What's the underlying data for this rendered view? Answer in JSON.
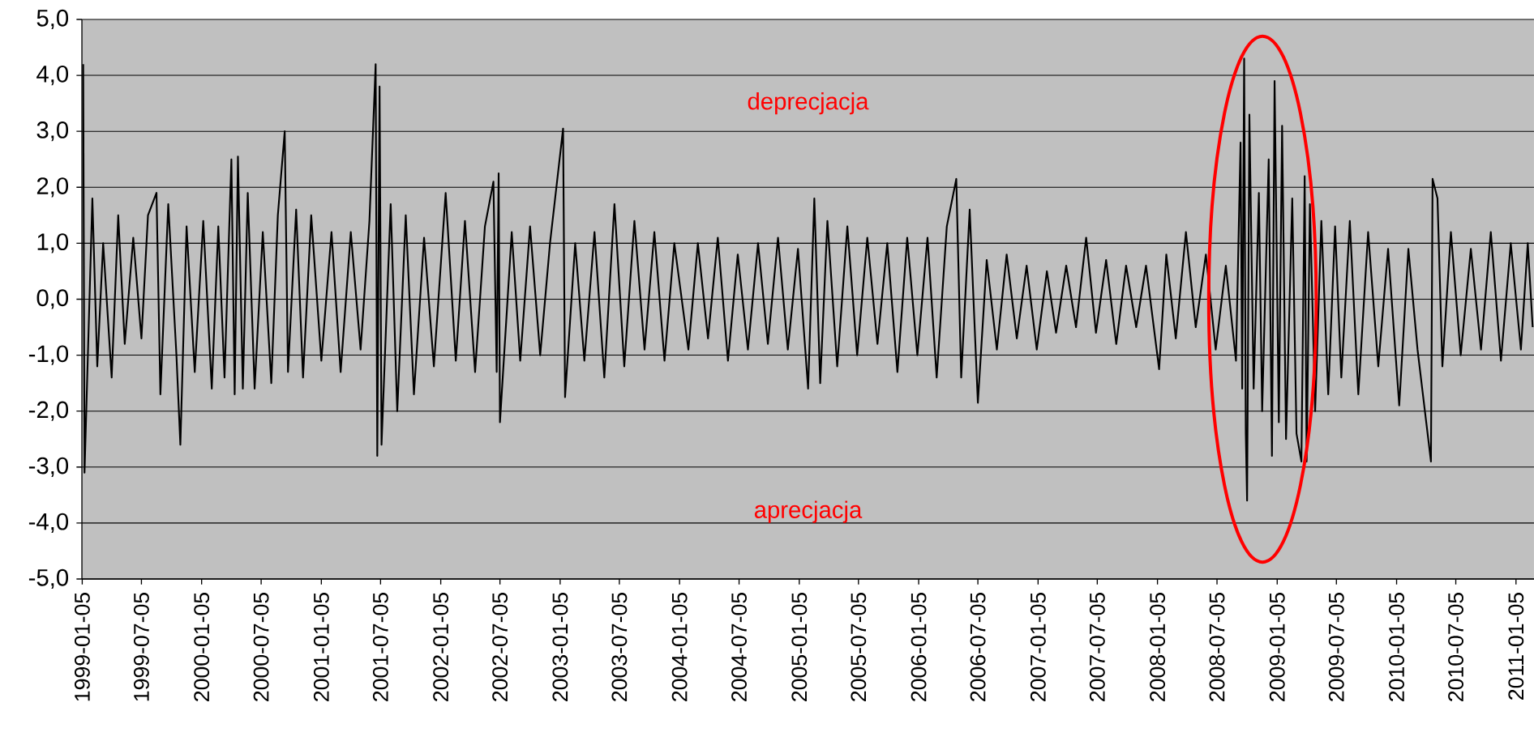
{
  "chart_data": {
    "type": "line",
    "color": "#000000",
    "grid": "y",
    "annotations": [
      "deprecjacja",
      "aprecjacja"
    ],
    "xlim": [
      "1999-01-04",
      "2011-03-01"
    ],
    "xticks": [
      "1999-01-05",
      "1999-07-05",
      "2000-01-05",
      "2000-07-05",
      "2001-01-05",
      "2001-07-05",
      "2002-01-05",
      "2002-07-05",
      "2003-01-05",
      "2003-07-05",
      "2004-01-05",
      "2004-07-05",
      "2005-01-05",
      "2005-07-05",
      "2006-01-05",
      "2006-07-05",
      "2007-01-05",
      "2007-07-05",
      "2008-01-05",
      "2008-07-05",
      "2009-01-05",
      "2009-07-05",
      "2010-01-05",
      "2010-07-05",
      "2011-01-05"
    ],
    "ylim": [
      -5,
      5
    ],
    "yticks": [
      {
        "value": -5,
        "label": "-5,0"
      },
      {
        "value": -4,
        "label": "-4,0"
      },
      {
        "value": -3,
        "label": "-3,0"
      },
      {
        "value": -2,
        "label": "-2,0"
      },
      {
        "value": -1,
        "label": "-1,0"
      },
      {
        "value": 0,
        "label": "0,0"
      },
      {
        "value": 1,
        "label": "1,0"
      },
      {
        "value": 2,
        "label": "2,0"
      },
      {
        "value": 3,
        "label": "3,0"
      },
      {
        "value": 4,
        "label": "4,0"
      },
      {
        "value": 5,
        "label": "5,0"
      }
    ],
    "x": [
      "1999-01-08",
      "1999-01-12",
      "1999-02-05",
      "1999-02-20",
      "1999-03-10",
      "1999-04-05",
      "1999-04-25",
      "1999-05-15",
      "1999-06-10",
      "1999-07-05",
      "1999-07-25",
      "1999-08-20",
      "1999-09-01",
      "1999-09-25",
      "1999-10-20",
      "1999-11-01",
      "1999-11-20",
      "1999-12-15",
      "2000-01-10",
      "2000-02-05",
      "2000-02-25",
      "2000-03-15",
      "2000-04-05",
      "2000-04-15",
      "2000-04-25",
      "2000-05-10",
      "2000-05-25",
      "2000-06-15",
      "2000-07-10",
      "2000-08-05",
      "2000-08-25",
      "2000-09-15",
      "2000-09-25",
      "2000-10-20",
      "2000-11-10",
      "2000-12-05",
      "2001-01-05",
      "2001-02-05",
      "2001-03-05",
      "2001-04-05",
      "2001-05-05",
      "2001-06-01",
      "2001-06-20",
      "2001-06-25",
      "2001-07-02",
      "2001-07-08",
      "2001-08-05",
      "2001-08-25",
      "2001-09-20",
      "2001-10-15",
      "2001-11-15",
      "2001-12-15",
      "2002-01-20",
      "2002-02-20",
      "2002-03-20",
      "2002-04-20",
      "2002-05-20",
      "2002-06-15",
      "2002-06-25",
      "2002-07-01",
      "2002-07-05",
      "2002-08-10",
      "2002-09-05",
      "2002-10-05",
      "2002-11-05",
      "2002-12-05",
      "2003-01-14",
      "2003-01-20",
      "2003-02-20",
      "2003-03-20",
      "2003-04-20",
      "2003-05-20",
      "2003-06-20",
      "2003-07-20",
      "2003-08-20",
      "2003-09-20",
      "2003-10-20",
      "2003-11-20",
      "2003-12-20",
      "2004-02-01",
      "2004-03-01",
      "2004-04-01",
      "2004-05-01",
      "2004-06-01",
      "2004-07-01",
      "2004-08-01",
      "2004-09-01",
      "2004-10-01",
      "2004-11-01",
      "2004-12-01",
      "2005-01-01",
      "2005-02-01",
      "2005-02-20",
      "2005-03-10",
      "2005-04-01",
      "2005-05-01",
      "2005-06-01",
      "2005-07-01",
      "2005-08-01",
      "2005-09-01",
      "2005-10-01",
      "2005-11-01",
      "2005-12-01",
      "2006-01-01",
      "2006-02-01",
      "2006-03-01",
      "2006-04-01",
      "2006-04-30",
      "2006-05-15",
      "2006-06-10",
      "2006-07-05",
      "2006-08-01",
      "2006-09-01",
      "2006-10-01",
      "2006-11-01",
      "2006-12-01",
      "2007-01-01",
      "2007-02-01",
      "2007-03-01",
      "2007-04-01",
      "2007-05-01",
      "2007-06-01",
      "2007-07-01",
      "2007-08-01",
      "2007-09-01",
      "2007-10-01",
      "2007-11-01",
      "2007-12-01",
      "2008-01-10",
      "2008-02-01",
      "2008-03-01",
      "2008-04-01",
      "2008-05-01",
      "2008-06-01",
      "2008-07-01",
      "2008-08-01",
      "2008-09-01",
      "2008-09-15",
      "2008-09-20",
      "2008-09-26",
      "2008-10-01",
      "2008-10-05",
      "2008-10-12",
      "2008-10-25",
      "2008-11-10",
      "2008-11-20",
      "2008-12-10",
      "2008-12-20",
      "2008-12-28",
      "2009-01-10",
      "2009-01-20",
      "2009-02-01",
      "2009-02-20",
      "2009-03-05",
      "2009-03-20",
      "2009-03-30",
      "2009-04-05",
      "2009-04-15",
      "2009-05-01",
      "2009-05-20",
      "2009-06-10",
      "2009-07-01",
      "2009-07-20",
      "2009-08-15",
      "2009-09-10",
      "2009-10-10",
      "2009-11-10",
      "2009-12-10",
      "2010-01-13",
      "2010-02-10",
      "2010-03-10",
      "2010-04-20",
      "2010-04-25",
      "2010-05-10",
      "2010-05-25",
      "2010-06-20",
      "2010-07-20",
      "2010-08-20",
      "2010-09-20",
      "2010-10-20",
      "2010-11-20",
      "2010-12-20",
      "2011-01-20",
      "2011-02-10",
      "2011-02-25"
    ],
    "values": [
      4.2,
      -3.1,
      1.8,
      -1.2,
      1.0,
      -1.4,
      1.5,
      -0.8,
      1.1,
      -0.7,
      1.5,
      1.9,
      -1.7,
      1.7,
      -1.0,
      -2.6,
      1.3,
      -1.3,
      1.4,
      -1.6,
      1.3,
      -1.4,
      2.5,
      -1.7,
      2.55,
      -1.6,
      1.9,
      -1.6,
      1.2,
      -1.5,
      1.5,
      3.0,
      -1.3,
      1.6,
      -1.4,
      1.5,
      -1.1,
      1.2,
      -1.3,
      1.2,
      -0.9,
      1.4,
      4.2,
      -2.8,
      3.8,
      -2.6,
      1.7,
      -2.0,
      1.5,
      -1.7,
      1.1,
      -1.2,
      1.9,
      -1.1,
      1.4,
      -1.3,
      1.3,
      2.1,
      -1.3,
      2.25,
      -2.2,
      1.2,
      -1.1,
      1.3,
      -1.0,
      1.0,
      3.05,
      -1.75,
      1.0,
      -1.1,
      1.2,
      -1.4,
      1.7,
      -1.2,
      1.4,
      -0.9,
      1.2,
      -1.1,
      1.0,
      -0.9,
      1.0,
      -0.7,
      1.1,
      -1.1,
      0.8,
      -0.9,
      1.0,
      -0.8,
      1.1,
      -0.9,
      0.9,
      -1.6,
      1.8,
      -1.5,
      1.4,
      -1.2,
      1.3,
      -1.0,
      1.1,
      -0.8,
      1.0,
      -1.3,
      1.1,
      -1.0,
      1.1,
      -1.4,
      1.3,
      2.15,
      -1.4,
      1.6,
      -1.85,
      0.7,
      -0.9,
      0.8,
      -0.7,
      0.6,
      -0.9,
      0.5,
      -0.6,
      0.6,
      -0.5,
      1.1,
      -0.6,
      0.7,
      -0.8,
      0.6,
      -0.5,
      0.6,
      -1.25,
      0.8,
      -0.7,
      1.2,
      -0.5,
      0.8,
      -0.9,
      0.6,
      -1.1,
      2.8,
      -1.6,
      4.3,
      -2.4,
      -3.6,
      3.3,
      -1.6,
      1.9,
      -2.0,
      2.5,
      -2.8,
      3.9,
      -2.2,
      3.1,
      -2.5,
      1.8,
      -2.4,
      -2.9,
      2.2,
      -2.9,
      1.7,
      -2.0,
      1.4,
      -1.7,
      1.3,
      -1.4,
      1.4,
      -1.7,
      1.2,
      -1.2,
      0.9,
      -1.9,
      0.9,
      -0.9,
      -2.9,
      2.15,
      1.8,
      -1.2,
      1.2,
      -1.0,
      0.9,
      -0.9,
      1.2,
      -1.1,
      1.0,
      -0.9,
      1.0,
      -0.5
    ]
  }
}
